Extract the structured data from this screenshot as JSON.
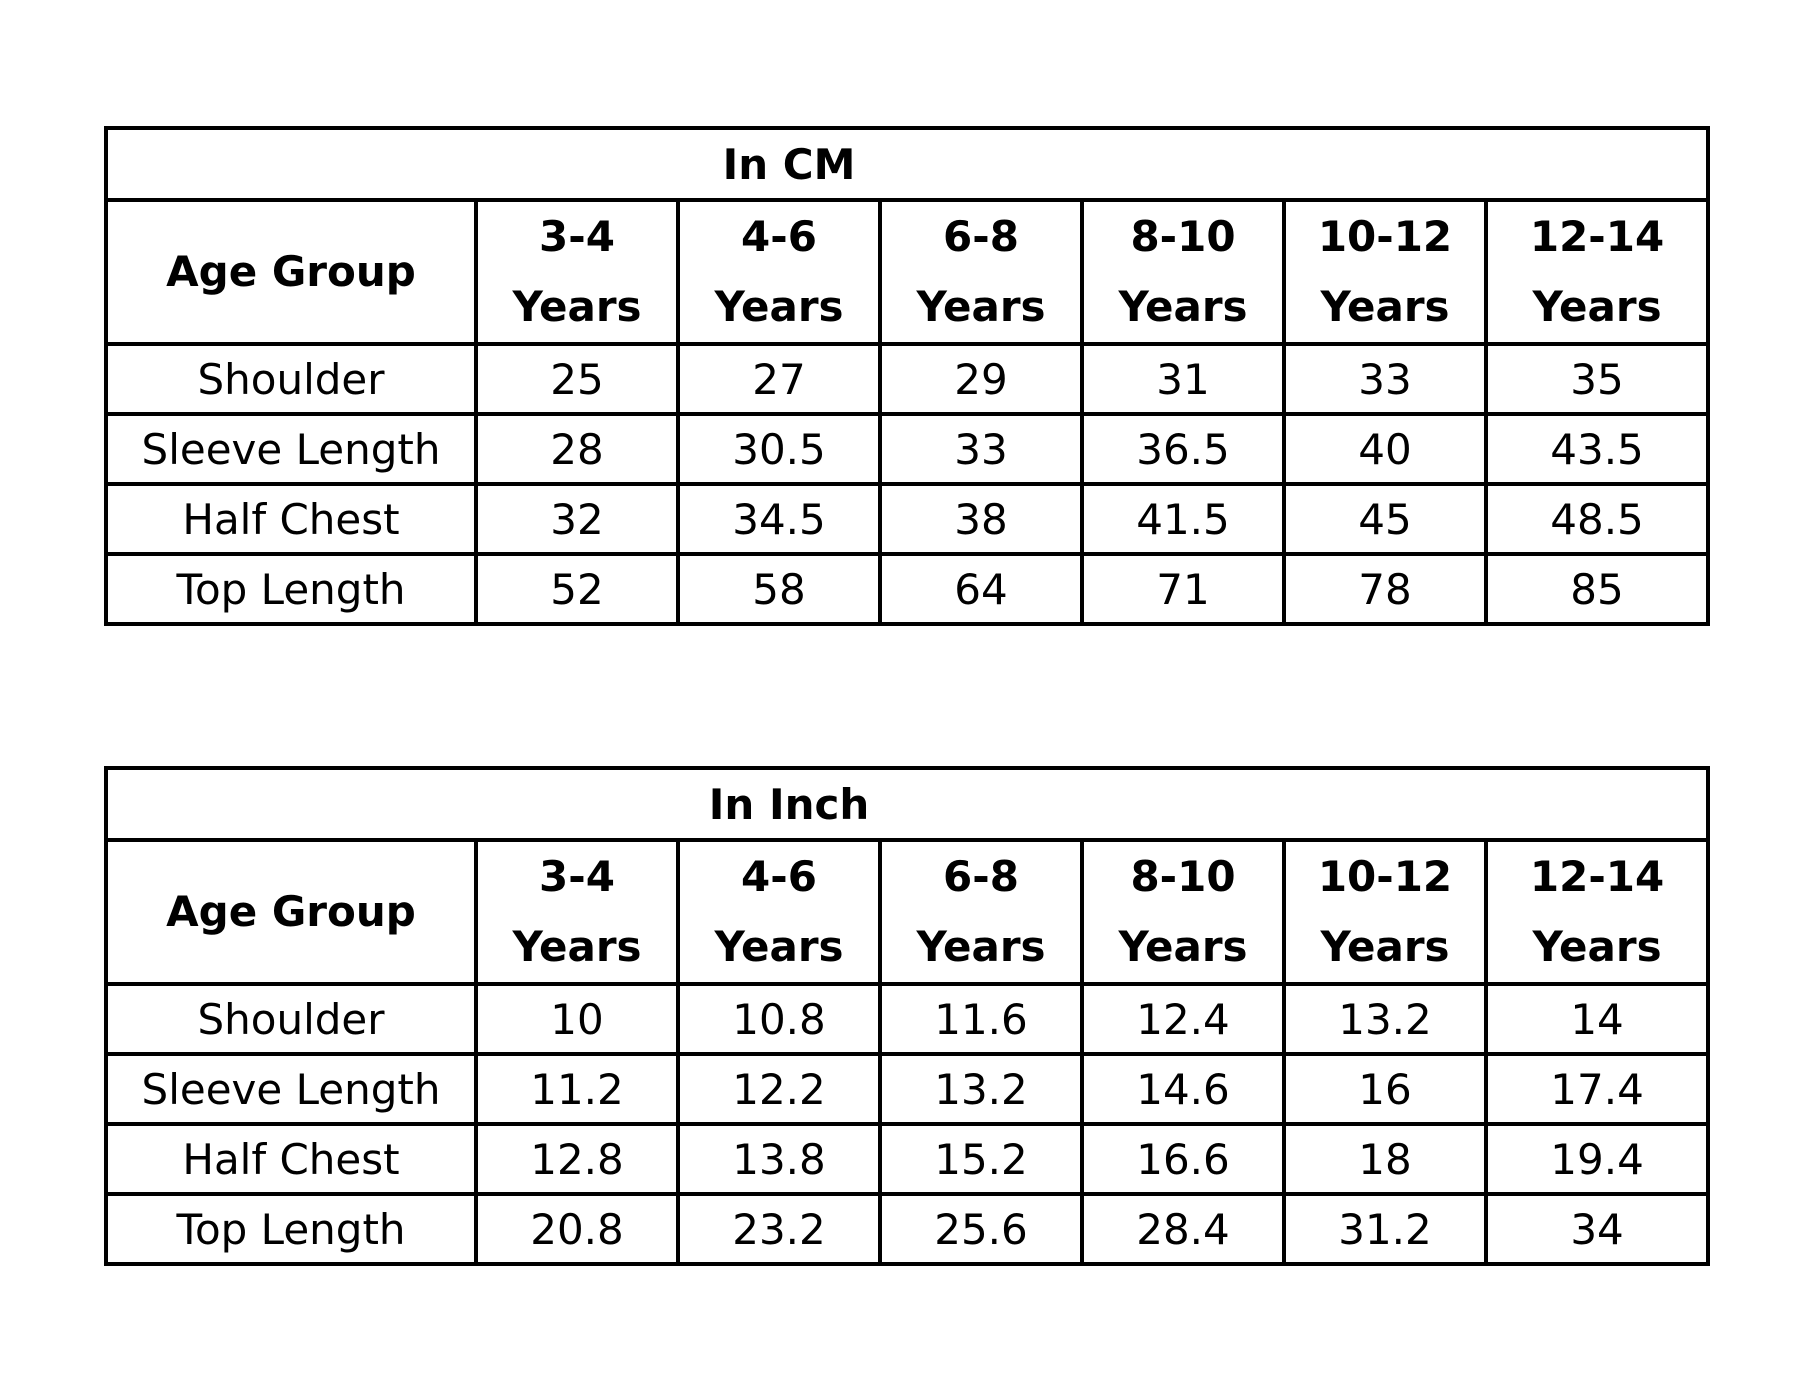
{
  "tables": [
    {
      "title": "In CM",
      "row_header_label": "Age Group",
      "columns": [
        {
          "range": "3-4",
          "unit": "Years"
        },
        {
          "range": "4-6",
          "unit": "Years"
        },
        {
          "range": "6-8",
          "unit": "Years"
        },
        {
          "range": "8-10",
          "unit": "Years"
        },
        {
          "range": "10-12",
          "unit": "Years"
        },
        {
          "range": "12-14",
          "unit": "Years"
        }
      ],
      "rows": [
        {
          "label": "Shoulder",
          "values": [
            "25",
            "27",
            "29",
            "31",
            "33",
            "35"
          ]
        },
        {
          "label": "Sleeve Length",
          "values": [
            "28",
            "30.5",
            "33",
            "36.5",
            "40",
            "43.5"
          ]
        },
        {
          "label": "Half Chest",
          "values": [
            "32",
            "34.5",
            "38",
            "41.5",
            "45",
            "48.5"
          ]
        },
        {
          "label": "Top Length",
          "values": [
            "52",
            "58",
            "64",
            "71",
            "78",
            "85"
          ]
        }
      ]
    },
    {
      "title": "In Inch",
      "row_header_label": "Age Group",
      "columns": [
        {
          "range": "3-4",
          "unit": "Years"
        },
        {
          "range": "4-6",
          "unit": "Years"
        },
        {
          "range": "6-8",
          "unit": "Years"
        },
        {
          "range": "8-10",
          "unit": "Years"
        },
        {
          "range": "10-12",
          "unit": "Years"
        },
        {
          "range": "12-14",
          "unit": "Years"
        }
      ],
      "rows": [
        {
          "label": "Shoulder",
          "values": [
            "10",
            "10.8",
            "11.6",
            "12.4",
            "13.2",
            "14"
          ]
        },
        {
          "label": "Sleeve Length",
          "values": [
            "11.2",
            "12.2",
            "13.2",
            "14.6",
            "16",
            "17.4"
          ]
        },
        {
          "label": "Half Chest",
          "values": [
            "12.8",
            "13.8",
            "15.2",
            "16.6",
            "18",
            "19.4"
          ]
        },
        {
          "label": "Top Length",
          "values": [
            "20.8",
            "23.2",
            "25.6",
            "28.4",
            "31.2",
            "34"
          ]
        }
      ]
    }
  ]
}
